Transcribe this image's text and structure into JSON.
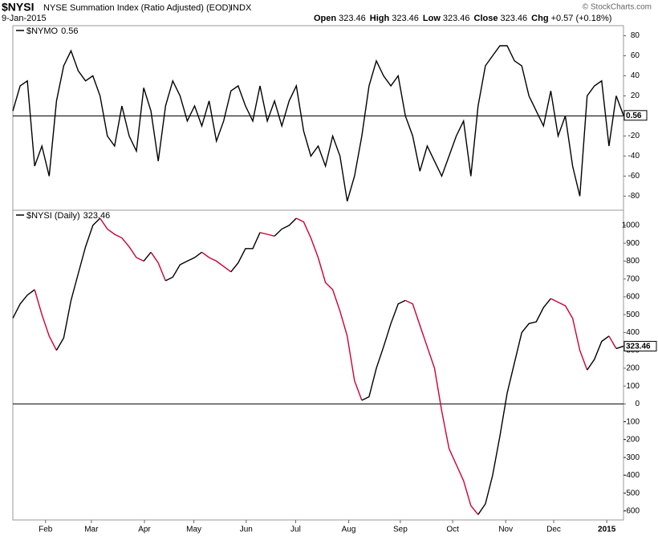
{
  "header": {
    "symbol": "$NYSI",
    "name": "NYSE Summation Index (Ratio Adjusted) (EOD)",
    "exchange": "INDX",
    "date": "9-Jan-2015",
    "ohlc": [
      {
        "label": "Open",
        "value": "323.46"
      },
      {
        "label": "High",
        "value": "323.46"
      },
      {
        "label": "Low",
        "value": "323.46"
      },
      {
        "label": "Close",
        "value": "323.46"
      },
      {
        "label": "Chg",
        "value": "+0.57 (+0.18%)"
      }
    ],
    "credit": "© StockCharts.com"
  },
  "chart_data": [
    {
      "type": "line",
      "xlim": [
        0,
        84
      ],
      "ylim": [
        -94,
        90
      ],
      "yticks": [
        -80,
        -60,
        -40,
        -20,
        0,
        20,
        40,
        60,
        80
      ],
      "zero_line": true,
      "series": [
        {
          "name": "$NYMO",
          "last_label": "0.56",
          "color": "#000000",
          "values": [
            5,
            30,
            35,
            -50,
            -30,
            -60,
            15,
            50,
            65,
            45,
            35,
            40,
            20,
            -20,
            -30,
            10,
            -20,
            -35,
            28,
            5,
            -45,
            10,
            35,
            20,
            -5,
            10,
            -10,
            15,
            -25,
            -5,
            25,
            30,
            10,
            -5,
            30,
            -5,
            15,
            -10,
            15,
            30,
            -15,
            -40,
            -30,
            -50,
            -20,
            -40,
            -85,
            -60,
            -20,
            30,
            55,
            40,
            30,
            40,
            0,
            -20,
            -55,
            -30,
            -45,
            -60,
            -40,
            -20,
            -5,
            -60,
            10,
            50,
            60,
            70,
            70,
            55,
            50,
            20,
            5,
            -10,
            25,
            -20,
            0,
            -50,
            -80,
            20,
            30,
            35,
            -30,
            20,
            0.56
          ]
        }
      ]
    },
    {
      "type": "line",
      "xlim": [
        0,
        84
      ],
      "ylim": [
        -650,
        1085
      ],
      "yticks": [
        -600,
        -500,
        -400,
        -300,
        -200,
        -100,
        0,
        100,
        200,
        300,
        400,
        500,
        600,
        700,
        800,
        900,
        1000
      ],
      "zero_line": true,
      "xticks": [
        {
          "value": 4.5,
          "label": "Feb"
        },
        {
          "value": 10.8,
          "label": "Mar"
        },
        {
          "value": 18.1,
          "label": "Apr"
        },
        {
          "value": 24.9,
          "label": "May"
        },
        {
          "value": 32.1,
          "label": "Jun"
        },
        {
          "value": 38.9,
          "label": "Jul"
        },
        {
          "value": 46.2,
          "label": "Aug"
        },
        {
          "value": 53.3,
          "label": "Sep"
        },
        {
          "value": 60.5,
          "label": "Oct"
        },
        {
          "value": 67.8,
          "label": "Nov"
        },
        {
          "value": 74.4,
          "label": "Dec"
        },
        {
          "value": 81.7,
          "label": "2015"
        }
      ],
      "series": [
        {
          "name": "$NYSI (Daily)",
          "last_label": "323.46",
          "up_color": "#000000",
          "down_color": "#cc0033",
          "values": [
            480,
            560,
            610,
            640,
            500,
            380,
            300,
            370,
            580,
            730,
            880,
            1000,
            1040,
            980,
            950,
            930,
            880,
            820,
            800,
            850,
            790,
            690,
            710,
            780,
            800,
            820,
            850,
            820,
            800,
            770,
            740,
            790,
            870,
            870,
            960,
            950,
            940,
            980,
            1000,
            1040,
            1020,
            930,
            820,
            680,
            640,
            520,
            380,
            130,
            20,
            40,
            200,
            320,
            450,
            560,
            580,
            560,
            440,
            320,
            200,
            -40,
            -250,
            -340,
            -430,
            -570,
            -620,
            -560,
            -400,
            -180,
            60,
            230,
            400,
            450,
            460,
            540,
            590,
            570,
            550,
            480,
            300,
            190,
            250,
            350,
            380,
            310,
            323.46
          ]
        }
      ]
    }
  ]
}
